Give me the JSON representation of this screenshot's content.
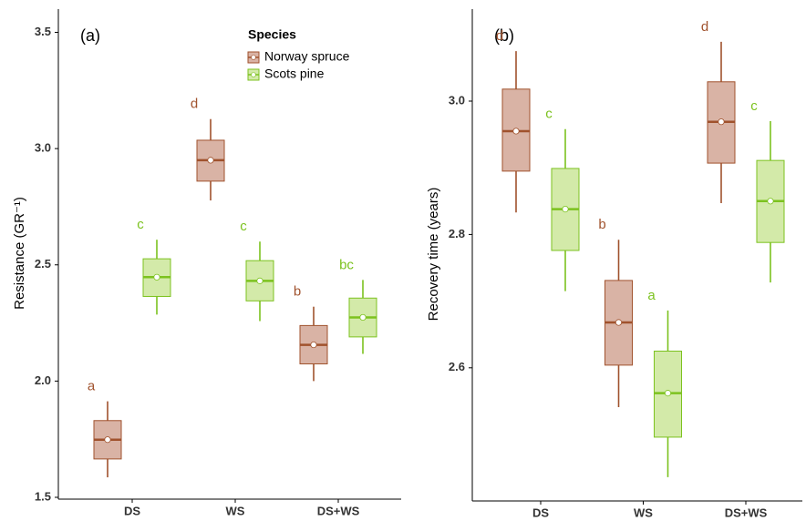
{
  "chart_data": [
    {
      "type": "box",
      "panel_label": "(a)",
      "ylabel": "Resistance (GR⁻¹)",
      "categories": [
        "DS",
        "WS",
        "DS+WS"
      ],
      "ylim": [
        1.5,
        3.6
      ],
      "yticks": [
        {
          "value": 1.5,
          "label": "1.5"
        },
        {
          "value": 2,
          "label": "2.0"
        },
        {
          "value": 2.5,
          "label": "2.5"
        },
        {
          "value": 3,
          "label": "3.0"
        },
        {
          "value": 3.5,
          "label": "3.5"
        }
      ],
      "legend_title": "Species",
      "series": [
        {
          "name": "Norway spruce",
          "color": "#a0522d",
          "fill": "#d9b3a5",
          "whisker_low": [
            1.586,
            2.777,
            2.0
          ],
          "q1": [
            1.665,
            2.86,
            2.074
          ],
          "median": [
            1.748,
            2.95,
            2.156
          ],
          "q3": [
            1.83,
            3.036,
            2.239
          ],
          "whisker_high": [
            1.913,
            3.127,
            2.32
          ],
          "mean": [
            1.748,
            2.95,
            2.156
          ],
          "letters": [
            "a",
            "d",
            "b"
          ]
        },
        {
          "name": "Scots pine",
          "color": "#7cc21f",
          "fill": "#d3eaa9",
          "whisker_low": [
            2.286,
            2.258,
            2.117
          ],
          "q1": [
            2.364,
            2.345,
            2.19
          ],
          "median": [
            2.447,
            2.431,
            2.274
          ],
          "q3": [
            2.526,
            2.518,
            2.357
          ],
          "whisker_high": [
            2.608,
            2.6,
            2.435
          ],
          "mean": [
            2.447,
            2.431,
            2.274
          ],
          "letters": [
            "c",
            "c",
            "bc"
          ]
        }
      ]
    },
    {
      "type": "box",
      "panel_label": "(b)",
      "ylabel": "Recovery time (years)",
      "categories": [
        "DS",
        "WS",
        "DS+WS"
      ],
      "ylim": [
        2.403,
        3.138
      ],
      "yticks": [
        {
          "value": 2.6,
          "label": "2.6"
        },
        {
          "value": 2.8,
          "label": "2.8"
        },
        {
          "value": 3,
          "label": "3.0"
        }
      ],
      "series": [
        {
          "color": "#a0522d",
          "fill": "#d9b3a5",
          "whisker_low": [
            2.833,
            2.541,
            2.847
          ],
          "q1": [
            2.895,
            2.604,
            2.907
          ],
          "median": [
            2.955,
            2.668,
            2.969
          ],
          "q3": [
            3.018,
            2.731,
            3.029
          ],
          "whisker_high": [
            3.075,
            2.792,
            3.089
          ],
          "mean": [
            2.955,
            2.668,
            2.969
          ],
          "letters": [
            "d",
            "b",
            "d"
          ]
        },
        {
          "color": "#7cc21f",
          "fill": "#d3eaa9",
          "whisker_low": [
            2.715,
            2.436,
            2.728
          ],
          "q1": [
            2.776,
            2.496,
            2.788
          ],
          "median": [
            2.838,
            2.562,
            2.85
          ],
          "q3": [
            2.899,
            2.625,
            2.911
          ],
          "whisker_high": [
            2.958,
            2.686,
            2.97
          ],
          "mean": [
            2.838,
            2.562,
            2.85
          ],
          "letters": [
            "c",
            "a",
            "c"
          ]
        }
      ]
    }
  ]
}
